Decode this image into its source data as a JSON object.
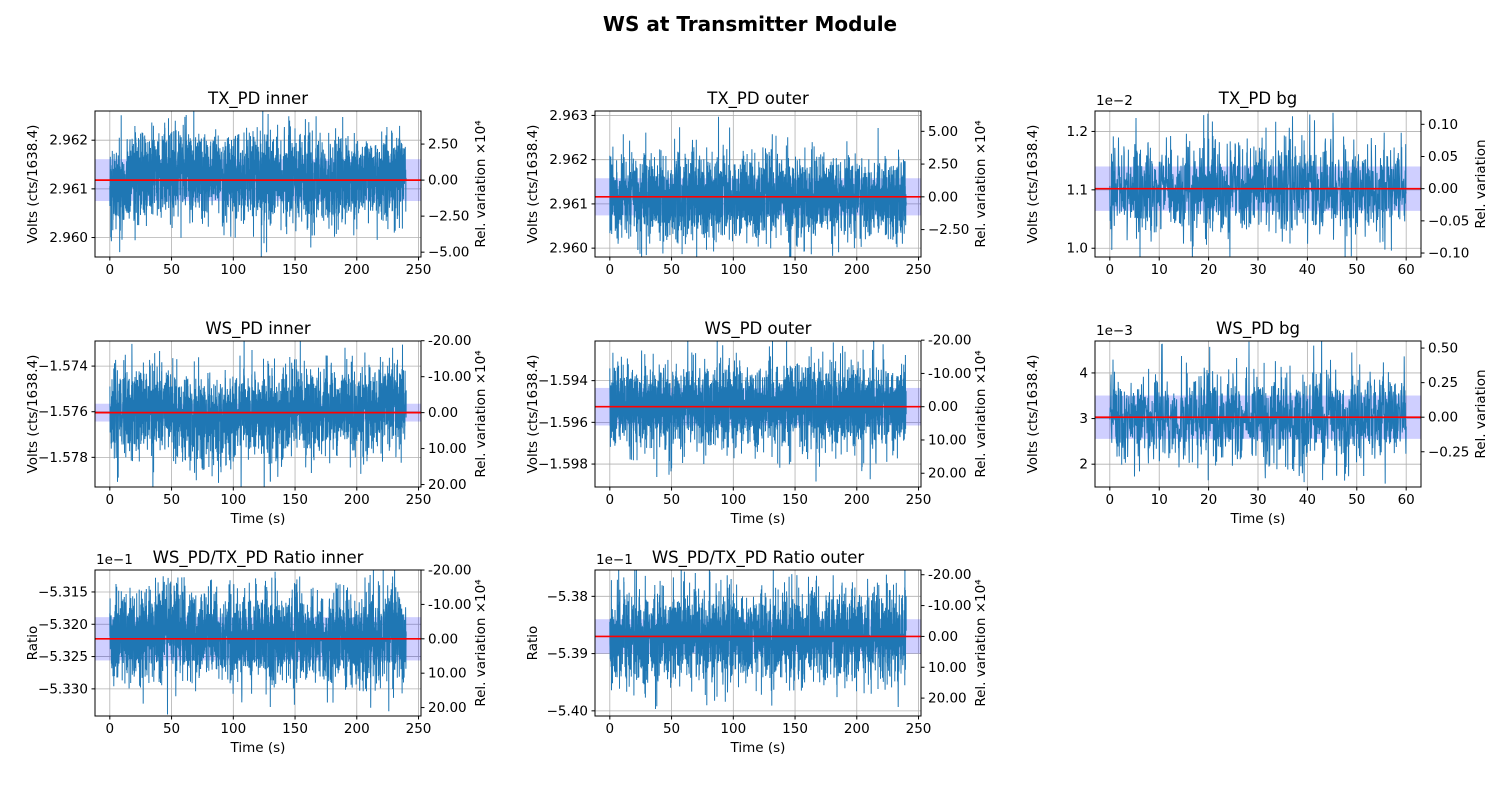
{
  "figure": {
    "title": "WS at Transmitter Module",
    "background": "#ffffff"
  },
  "colors": {
    "series": "#1f77b4",
    "mean_line": "#ff0000",
    "band_fill": "rgba(0,0,255,0.19)",
    "grid": "#b0b0b0",
    "axes_edge": "#000000",
    "text": "#000000"
  },
  "chart_data": [
    {
      "type": "line",
      "id": "tx_pd_inner",
      "title": "TX_PD inner",
      "ylabel": "Volts (cts/1638.4)",
      "right_label": "Rel. variation ×10⁴",
      "xlabel": null,
      "offset_text": null,
      "xlim": [
        -12,
        252
      ],
      "xticks": [
        0,
        50,
        100,
        150,
        200,
        250
      ],
      "ylim": [
        2.9596,
        2.9626
      ],
      "yticks": [
        {
          "v": 2.96,
          "label": "2.960"
        },
        {
          "v": 2.961,
          "label": "2.961"
        },
        {
          "v": 2.962,
          "label": "2.962"
        }
      ],
      "right_unit": 0.0001,
      "right_ticks": [
        {
          "r": 2.5,
          "label": "2.50"
        },
        {
          "r": 0,
          "label": "0.00"
        },
        {
          "r": -2.5,
          "label": "−2.50"
        },
        {
          "r": -5,
          "label": "−5.00"
        }
      ],
      "mean": 2.96118,
      "band_halfwidth": 0.00043,
      "noise_sigma": 0.00046,
      "n_points": 2400,
      "t_max": 240,
      "seed": 101,
      "drift": [
        {
          "c": 50,
          "w": 40,
          "a": 0.00024
        },
        {
          "c": 4,
          "w": 11,
          "a": -0.0003
        }
      ],
      "spikes": [
        {
          "t": 8,
          "v": 2.9597
        },
        {
          "t": 47.5,
          "v": 2.96245
        },
        {
          "t": 53,
          "v": 2.9624
        }
      ]
    },
    {
      "type": "line",
      "id": "tx_pd_outer",
      "title": "TX_PD outer",
      "ylabel": "Volts (cts/1638.4)",
      "right_label": "Rel. variation ×10⁴",
      "xlabel": null,
      "offset_text": null,
      "xlim": [
        -12,
        252
      ],
      "xticks": [
        0,
        50,
        100,
        150,
        200,
        250
      ],
      "ylim": [
        2.9598,
        2.9631
      ],
      "yticks": [
        {
          "v": 2.96,
          "label": "2.960"
        },
        {
          "v": 2.961,
          "label": "2.961"
        },
        {
          "v": 2.962,
          "label": "2.962"
        },
        {
          "v": 2.963,
          "label": "2.963"
        }
      ],
      "right_unit": 0.0001,
      "right_ticks": [
        {
          "r": 5,
          "label": "5.00"
        },
        {
          "r": 2.5,
          "label": "2.50"
        },
        {
          "r": 0,
          "label": "0.00"
        },
        {
          "r": -2.5,
          "label": "−2.50"
        }
      ],
      "mean": 2.96116,
      "band_halfwidth": 0.00042,
      "noise_sigma": 0.00047,
      "n_points": 2400,
      "t_max": 240,
      "seed": 202,
      "drift": [],
      "spikes": [
        {
          "t": 88,
          "v": 2.96297
        },
        {
          "t": 70,
          "v": 2.96245
        },
        {
          "t": 143,
          "v": 2.96232
        },
        {
          "t": 43,
          "v": 2.95988
        }
      ]
    },
    {
      "type": "line",
      "id": "tx_pd_bg",
      "title": "TX_PD bg",
      "ylabel": "Volts (cts/1638.4)",
      "right_label": "Rel. variation",
      "xlabel": null,
      "offset_text": "1e−2",
      "xlim": [
        -3,
        63
      ],
      "xticks": [
        0,
        10,
        20,
        30,
        40,
        50,
        60
      ],
      "ylim": [
        0.985,
        1.235
      ],
      "yticks": [
        {
          "v": 1.0,
          "label": "1.0"
        },
        {
          "v": 1.1,
          "label": "1.1"
        },
        {
          "v": 1.2,
          "label": "1.2"
        }
      ],
      "right_unit": 1,
      "right_ticks": [
        {
          "r": 0.1,
          "label": "0.10"
        },
        {
          "r": 0.05,
          "label": "0.05"
        },
        {
          "r": 0,
          "label": "0.00"
        },
        {
          "r": -0.05,
          "label": "−0.05"
        },
        {
          "r": -0.1,
          "label": "−0.10"
        }
      ],
      "mean": 1.102,
      "band_halfwidth": 0.038,
      "noise_sigma": 0.038,
      "n_points": 1200,
      "t_max": 60,
      "seed": 303,
      "drift": [],
      "spikes": [
        {
          "t": 24.3,
          "v": 0.986
        },
        {
          "t": 19,
          "v": 1.228
        },
        {
          "t": 37,
          "v": 1.226
        },
        {
          "t": 45.2,
          "v": 1.232
        },
        {
          "t": 5.3,
          "v": 1.223
        },
        {
          "t": 40.5,
          "v": 1.229
        }
      ]
    },
    {
      "type": "line",
      "id": "ws_pd_inner",
      "title": "WS_PD inner",
      "ylabel": "Volts (cts/1638.4)",
      "right_label": "Rel. variation ×10⁴",
      "xlabel": "Time (s)",
      "offset_text": null,
      "xlim": [
        -12,
        252
      ],
      "xticks": [
        0,
        50,
        100,
        150,
        200,
        250
      ],
      "ylim": [
        -1.5793,
        -1.5729
      ],
      "yticks": [
        {
          "v": -1.574,
          "label": "−1.574"
        },
        {
          "v": -1.576,
          "label": "−1.576"
        },
        {
          "v": -1.578,
          "label": "−1.578"
        }
      ],
      "right_unit": 0.0001,
      "right_ticks": [
        {
          "r": -20,
          "label": "-20.00"
        },
        {
          "r": -10,
          "label": "-10.00"
        },
        {
          "r": 0,
          "label": "0.00"
        },
        {
          "r": 10,
          "label": "10.00"
        },
        {
          "r": 20,
          "label": "20.00"
        }
      ],
      "mean": -1.57604,
      "band_halfwidth": 0.00039,
      "noise_sigma": 0.001,
      "n_points": 2400,
      "t_max": 240,
      "seed": 404,
      "drift": [
        {
          "c": 75,
          "w": 40,
          "a": -0.0003
        },
        {
          "c": 232,
          "w": 22,
          "a": 0.0004
        },
        {
          "c": 40,
          "w": 18,
          "a": 0.0004
        }
      ],
      "spikes": [
        {
          "t": 70,
          "v": -1.579
        },
        {
          "t": 88,
          "v": -1.57912
        },
        {
          "t": 130,
          "v": -1.57905
        },
        {
          "t": 229,
          "v": -1.5732
        }
      ]
    },
    {
      "type": "line",
      "id": "ws_pd_outer",
      "title": "WS_PD outer",
      "ylabel": "Volts (cts/1638.4)",
      "right_label": "Rel. variation ×10⁴",
      "xlabel": "Time (s)",
      "offset_text": null,
      "xlim": [
        -12,
        252
      ],
      "xticks": [
        0,
        50,
        100,
        150,
        200,
        250
      ],
      "ylim": [
        -1.5991,
        -1.5921
      ],
      "yticks": [
        {
          "v": -1.594,
          "label": "−1.594"
        },
        {
          "v": -1.596,
          "label": "−1.596"
        },
        {
          "v": -1.598,
          "label": "−1.598"
        }
      ],
      "right_unit": 0.0001,
      "right_ticks": [
        {
          "r": -20,
          "label": "-20.00"
        },
        {
          "r": -10,
          "label": "-10.00"
        },
        {
          "r": 0,
          "label": "0.00"
        },
        {
          "r": 10,
          "label": "10.00"
        },
        {
          "r": 20,
          "label": "20.00"
        }
      ],
      "mean": -1.59525,
      "band_halfwidth": 0.0009,
      "noise_sigma": 0.00105,
      "n_points": 2400,
      "t_max": 240,
      "seed": 505,
      "drift": [],
      "spikes": [
        {
          "t": 38,
          "v": -1.59862
        },
        {
          "t": 22,
          "v": -1.59782
        },
        {
          "t": 183,
          "v": -1.59775
        }
      ]
    },
    {
      "type": "line",
      "id": "ws_pd_bg",
      "title": "WS_PD bg",
      "ylabel": "Volts (cts/1638.4)",
      "right_label": "Rel. variation",
      "xlabel": "Time (s)",
      "offset_text": "1e−3",
      "xlim": [
        -3,
        63
      ],
      "xticks": [
        0,
        10,
        20,
        30,
        40,
        50,
        60
      ],
      "ylim": [
        1.5,
        4.7
      ],
      "yticks": [
        {
          "v": 2,
          "label": "2"
        },
        {
          "v": 3,
          "label": "3"
        },
        {
          "v": 4,
          "label": "4"
        }
      ],
      "right_unit": 1,
      "right_ticks": [
        {
          "r": 0.5,
          "label": "0.50"
        },
        {
          "r": 0.25,
          "label": "0.25"
        },
        {
          "r": 0,
          "label": "0.00"
        },
        {
          "r": -0.25,
          "label": "−0.25"
        }
      ],
      "mean": 3.03,
      "band_halfwidth": 0.475,
      "noise_sigma": 0.5,
      "n_points": 1200,
      "t_max": 60,
      "seed": 606,
      "drift": [],
      "spikes": [
        {
          "t": 10.6,
          "v": 4.64
        },
        {
          "t": 20.2,
          "v": 4.57
        },
        {
          "t": 41.3,
          "v": 4.6
        },
        {
          "t": 39,
          "v": 1.8
        },
        {
          "t": 5,
          "v": 1.73
        },
        {
          "t": 51.4,
          "v": 1.74
        }
      ]
    },
    {
      "type": "line",
      "id": "ratio_inner",
      "title": "WS_PD/TX_PD Ratio inner",
      "ylabel": "Ratio",
      "right_label": "Rel. variation ×10⁴",
      "xlabel": "Time (s)",
      "offset_text": "1e−1",
      "xlim": [
        -12,
        252
      ],
      "xticks": [
        0,
        50,
        100,
        150,
        200,
        250
      ],
      "ylim": [
        -5.3342,
        -5.3116
      ],
      "yticks": [
        {
          "v": -5.315,
          "label": "−5.315"
        },
        {
          "v": -5.32,
          "label": "−5.320"
        },
        {
          "v": -5.325,
          "label": "−5.325"
        },
        {
          "v": -5.33,
          "label": "−5.330"
        }
      ],
      "right_unit": 0.0001,
      "right_ticks": [
        {
          "r": -20,
          "label": "-20.00"
        },
        {
          "r": -10,
          "label": "-10.00"
        },
        {
          "r": 0,
          "label": "0.00"
        },
        {
          "r": 10,
          "label": "10.00"
        },
        {
          "r": 20,
          "label": "20.00"
        }
      ],
      "mean": -5.32225,
      "band_halfwidth": 0.00335,
      "noise_sigma": 0.0035,
      "n_points": 2400,
      "t_max": 240,
      "seed": 707,
      "drift": [
        {
          "c": 45,
          "w": 35,
          "a": 0.0015
        }
      ],
      "spikes": [
        {
          "t": 130,
          "v": -5.3328
        },
        {
          "t": 37,
          "v": -5.3128
        },
        {
          "t": 229,
          "v": -5.3126
        }
      ]
    },
    {
      "type": "line",
      "id": "ratio_outer",
      "title": "WS_PD/TX_PD Ratio outer",
      "ylabel": "Ratio",
      "right_label": "Rel. variation ×10⁴",
      "xlabel": "Time (s)",
      "offset_text": "1e−1",
      "xlim": [
        -12,
        252
      ],
      "xticks": [
        0,
        50,
        100,
        150,
        200,
        250
      ],
      "ylim": [
        -5.4009,
        -5.3754
      ],
      "yticks": [
        {
          "v": -5.38,
          "label": "−5.38"
        },
        {
          "v": -5.39,
          "label": "−5.39"
        },
        {
          "v": -5.4,
          "label": "−5.40"
        }
      ],
      "right_unit": 0.0001,
      "right_ticks": [
        {
          "r": -20,
          "label": "-20.00"
        },
        {
          "r": -10,
          "label": "-10.00"
        },
        {
          "r": 0,
          "label": "0.00"
        },
        {
          "r": 10,
          "label": "10.00"
        },
        {
          "r": 20,
          "label": "20.00"
        }
      ],
      "mean": -5.387,
      "band_halfwidth": 0.003,
      "noise_sigma": 0.004,
      "n_points": 2400,
      "t_max": 240,
      "seed": 808,
      "drift": [],
      "spikes": [
        {
          "t": 38,
          "v": -5.3992
        },
        {
          "t": 184,
          "v": -5.3976
        },
        {
          "t": 95,
          "v": -5.3763
        },
        {
          "t": 224,
          "v": -5.3762
        }
      ]
    }
  ]
}
